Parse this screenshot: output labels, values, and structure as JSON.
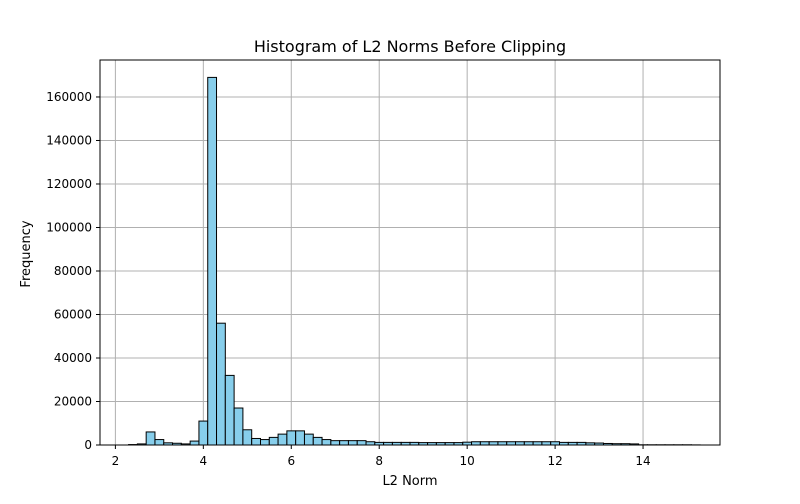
{
  "chart_data": {
    "type": "bar",
    "title": "Histogram of L2 Norms Before Clipping",
    "xlabel": "L2 Norm",
    "ylabel": "Frequency",
    "xlim": [
      1.65,
      15.75
    ],
    "ylim": [
      0,
      177000
    ],
    "grid": true,
    "bar_color": "#87CEEB",
    "edge_color": "#000000",
    "bin_edges": [
      2.3,
      2.5,
      2.7,
      2.9,
      3.1,
      3.3,
      3.5,
      3.7,
      3.9,
      4.1,
      4.3,
      4.5,
      4.7,
      4.9,
      5.1,
      5.3,
      5.5,
      5.7,
      5.9,
      6.1,
      6.3,
      6.5,
      6.7,
      6.9,
      7.1,
      7.3,
      7.5,
      7.7,
      7.9,
      8.1,
      8.3,
      8.5,
      8.7,
      8.9,
      9.1,
      9.3,
      9.5,
      9.7,
      9.9,
      10.1,
      10.3,
      10.5,
      10.7,
      10.9,
      11.1,
      11.3,
      11.5,
      11.7,
      11.9,
      12.1,
      12.3,
      12.5,
      12.7,
      12.9,
      13.1,
      13.3,
      13.5,
      13.7,
      13.9,
      14.1,
      14.3,
      14.5,
      14.7,
      14.9,
      15.1,
      15.3
    ],
    "values": [
      200,
      500,
      6000,
      2500,
      1000,
      800,
      500,
      1800,
      11000,
      169000,
      56000,
      32000,
      17000,
      7000,
      3000,
      2500,
      3500,
      5000,
      6500,
      6500,
      5000,
      3500,
      2500,
      2000,
      2000,
      2000,
      2000,
      1500,
      1200,
      1200,
      1200,
      1200,
      1200,
      1100,
      1100,
      1100,
      1100,
      1100,
      1300,
      1500,
      1500,
      1500,
      1500,
      1500,
      1500,
      1500,
      1500,
      1500,
      1500,
      1200,
      1200,
      1200,
      1000,
      900,
      700,
      600,
      600,
      500,
      100,
      100,
      100,
      100,
      100,
      100,
      50
    ],
    "x_ticks": [
      2,
      4,
      6,
      8,
      10,
      12,
      14
    ],
    "y_ticks": [
      0,
      20000,
      40000,
      60000,
      80000,
      100000,
      120000,
      140000,
      160000
    ]
  }
}
